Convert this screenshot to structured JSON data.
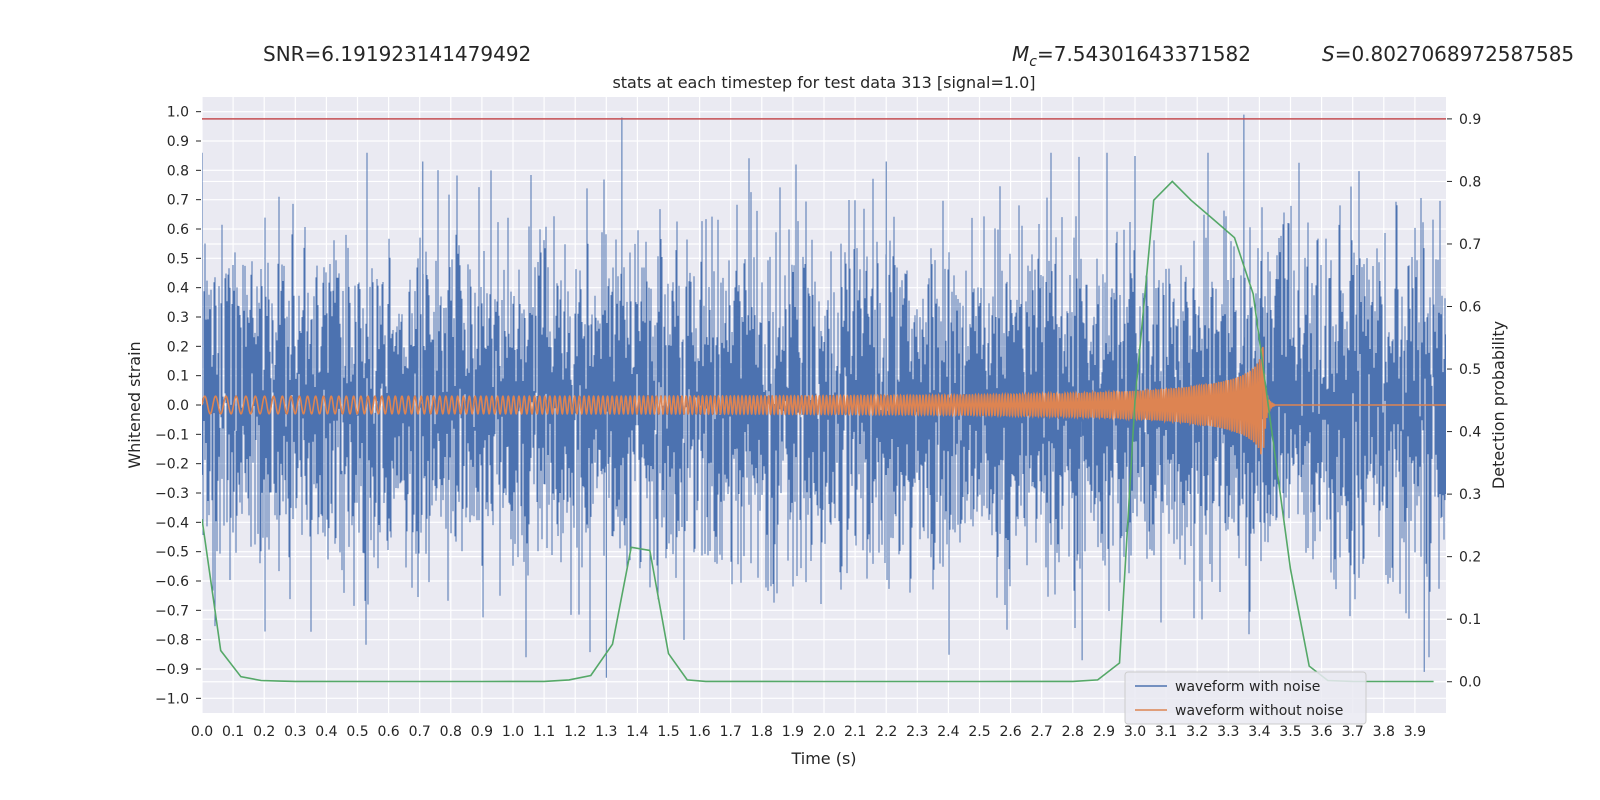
{
  "header": {
    "snr_text": "SNR=6.191923141479492",
    "mc_prefix": "M",
    "mc_sub": "c",
    "mc_value": "=7.54301643371582",
    "s_prefix": "S",
    "s_value": "=0.8027068972587585"
  },
  "chart_data": {
    "type": "line",
    "title": "stats at each timestep for test data 313 [signal=1.0]",
    "xlabel": "Time (s)",
    "ylabel": "Whitened strain",
    "y2label": "Detection probability",
    "xlim": [
      0.0,
      4.0
    ],
    "ylim": [
      -1.05,
      1.05
    ],
    "y2lim": [
      -0.05,
      0.935
    ],
    "xticks": [
      0.0,
      0.1,
      0.2,
      0.3,
      0.4,
      0.5,
      0.6,
      0.7,
      0.8,
      0.9,
      1.0,
      1.1,
      1.2,
      1.3,
      1.4,
      1.5,
      1.6,
      1.7,
      1.8,
      1.9,
      2.0,
      2.1,
      2.2,
      2.3,
      2.4,
      2.5,
      2.6,
      2.7,
      2.8,
      2.9,
      3.0,
      3.1,
      3.2,
      3.3,
      3.4,
      3.5,
      3.6,
      3.7,
      3.8,
      3.9
    ],
    "xtick_labels": [
      "0.0",
      "0.1",
      "0.2",
      "0.3",
      "0.4",
      "0.5",
      "0.6",
      "0.7",
      "0.8",
      "0.9",
      "1.0",
      "1.1",
      "1.2",
      "1.3",
      "1.4",
      "1.5",
      "1.6",
      "1.7",
      "1.8",
      "1.9",
      "2.0",
      "2.1",
      "2.2",
      "2.3",
      "2.4",
      "2.5",
      "2.6",
      "2.7",
      "2.8",
      "2.9",
      "3.0",
      "3.1",
      "3.2",
      "3.3",
      "3.4",
      "3.5",
      "3.6",
      "3.7",
      "3.8",
      "3.9"
    ],
    "yticks": [
      1.0,
      0.9,
      0.8,
      0.7,
      0.6,
      0.5,
      0.4,
      0.3,
      0.2,
      0.1,
      0.0,
      -0.1,
      -0.2,
      -0.3,
      -0.4,
      -0.5,
      -0.6,
      -0.7,
      -0.8,
      -0.9,
      -1.0
    ],
    "ytick_labels": [
      "1.0",
      "0.9",
      "0.8",
      "0.7",
      "0.6",
      "0.5",
      "0.4",
      "0.3",
      "0.2",
      "0.1",
      "0.0",
      "−0.1",
      "−0.2",
      "−0.3",
      "−0.4",
      "−0.5",
      "−0.6",
      "−0.7",
      "−0.8",
      "−0.9",
      "−1.0"
    ],
    "y2ticks": [
      0.9,
      0.8,
      0.7,
      0.6,
      0.5,
      0.4,
      0.3,
      0.2,
      0.1,
      0.0
    ],
    "y2tick_labels": [
      "0.9",
      "0.8",
      "0.7",
      "0.6",
      "0.5",
      "0.4",
      "0.3",
      "0.2",
      "0.1",
      "0.0"
    ],
    "threshold_line": {
      "axis": "right",
      "value": 0.9,
      "color": "#c44e52"
    },
    "series": [
      {
        "name": "waveform with noise",
        "color": "#4c72b0",
        "axis": "left",
        "kind": "noise",
        "sample_rate": 2048,
        "amplitude_std": 0.25,
        "peaks": [
          [
            1.35,
            0.98
          ],
          [
            3.35,
            0.99
          ],
          [
            1.3,
            -0.93
          ],
          [
            3.93,
            -0.91
          ],
          [
            2.83,
            -0.87
          ],
          [
            0.71,
            0.83
          ],
          [
            2.2,
            0.83
          ],
          [
            1.91,
            0.82
          ]
        ]
      },
      {
        "name": "waveform without noise",
        "color": "#dd8452",
        "axis": "left",
        "kind": "chirp",
        "start_amplitude": 0.03,
        "merger_time": 3.41,
        "peak_amplitude": 0.23,
        "start_frequency": 28,
        "end_frequency": 200,
        "ringdown_end": 3.45
      },
      {
        "name": "Detection probability",
        "color": "#55a868",
        "axis": "right",
        "kind": "line",
        "x": [
          0.0,
          0.06,
          0.125,
          0.19,
          0.25,
          0.3,
          0.6,
          0.9,
          1.1,
          1.18,
          1.25,
          1.32,
          1.38,
          1.44,
          1.5,
          1.56,
          1.62,
          2.0,
          2.5,
          2.8,
          2.88,
          2.95,
          3.0,
          3.06,
          3.12,
          3.18,
          3.25,
          3.32,
          3.38,
          3.44,
          3.5,
          3.56,
          3.62,
          3.7,
          3.8,
          3.9,
          3.96
        ],
        "y": [
          0.26,
          0.05,
          0.008,
          0.002,
          0.001,
          0.0005,
          0.0003,
          0.0003,
          0.0005,
          0.003,
          0.01,
          0.06,
          0.215,
          0.21,
          0.045,
          0.003,
          0.0005,
          0.0003,
          0.0003,
          0.0005,
          0.003,
          0.03,
          0.45,
          0.77,
          0.8,
          0.77,
          0.74,
          0.71,
          0.62,
          0.4,
          0.18,
          0.025,
          0.002,
          0.0005,
          0.0003,
          0.0003,
          0.0003
        ]
      }
    ],
    "legend": {
      "position": "lower-right",
      "entries": [
        "waveform with noise",
        "waveform without noise"
      ]
    }
  }
}
